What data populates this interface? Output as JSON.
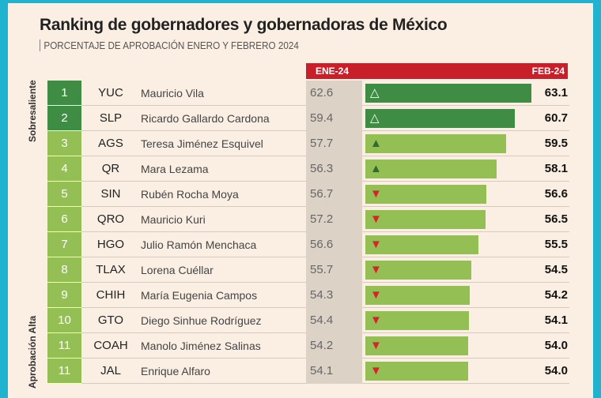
{
  "chart_data": {
    "type": "bar",
    "title": "Ranking de gobernadores y gobernadoras de México",
    "subtitle": "PORCENTAJE DE APROBACIÓN ENERO Y FEBRERO 2024",
    "columns": [
      "ENE-24",
      "FEB-24"
    ],
    "groups": [
      "Sobresaliente",
      "Aprobación Alta"
    ],
    "rows": [
      {
        "rank": "1",
        "state": "YUC",
        "name": "Mauricio Vila",
        "ene": "62.6",
        "feb": "63.1",
        "trend": "up",
        "group": "Sobresaliente"
      },
      {
        "rank": "2",
        "state": "SLP",
        "name": "Ricardo Gallardo Cardona",
        "ene": "59.4",
        "feb": "60.7",
        "trend": "up",
        "group": "Sobresaliente"
      },
      {
        "rank": "3",
        "state": "AGS",
        "name": "Teresa Jiménez Esquivel",
        "ene": "57.7",
        "feb": "59.5",
        "trend": "up",
        "group": "Aprobación Alta"
      },
      {
        "rank": "4",
        "state": "QR",
        "name": "Mara Lezama",
        "ene": "56.3",
        "feb": "58.1",
        "trend": "up",
        "group": "Aprobación Alta"
      },
      {
        "rank": "5",
        "state": "SIN",
        "name": "Rubén Rocha Moya",
        "ene": "56.7",
        "feb": "56.6",
        "trend": "down",
        "group": "Aprobación Alta"
      },
      {
        "rank": "6",
        "state": "QRO",
        "name": "Mauricio Kuri",
        "ene": "57.2",
        "feb": "56.5",
        "trend": "down",
        "group": "Aprobación Alta"
      },
      {
        "rank": "7",
        "state": "HGO",
        "name": "Julio Ramón Menchaca",
        "ene": "56.6",
        "feb": "55.5",
        "trend": "down",
        "group": "Aprobación Alta"
      },
      {
        "rank": "8",
        "state": "TLAX",
        "name": "Lorena Cuéllar",
        "ene": "55.7",
        "feb": "54.5",
        "trend": "down",
        "group": "Aprobación Alta"
      },
      {
        "rank": "9",
        "state": "CHIH",
        "name": "María Eugenia Campos",
        "ene": "54.3",
        "feb": "54.2",
        "trend": "down",
        "group": "Aprobación Alta"
      },
      {
        "rank": "10",
        "state": "GTO",
        "name": "Diego Sinhue Rodríguez",
        "ene": "54.4",
        "feb": "54.1",
        "trend": "down",
        "group": "Aprobación Alta"
      },
      {
        "rank": "11",
        "state": "COAH",
        "name": "Manolo Jiménez Salinas",
        "ene": "54.2",
        "feb": "54.0",
        "trend": "down",
        "group": "Aprobación Alta"
      },
      {
        "rank": "11",
        "state": "JAL",
        "name": "Enrique Alfaro",
        "ene": "54.1",
        "feb": "54.0",
        "trend": "down",
        "group": "Aprobación Alta"
      }
    ],
    "colors": {
      "sobresaliente": "#3f8c45",
      "alta": "#93bf55",
      "header": "#c8202a",
      "down": "#d8232a"
    }
  }
}
